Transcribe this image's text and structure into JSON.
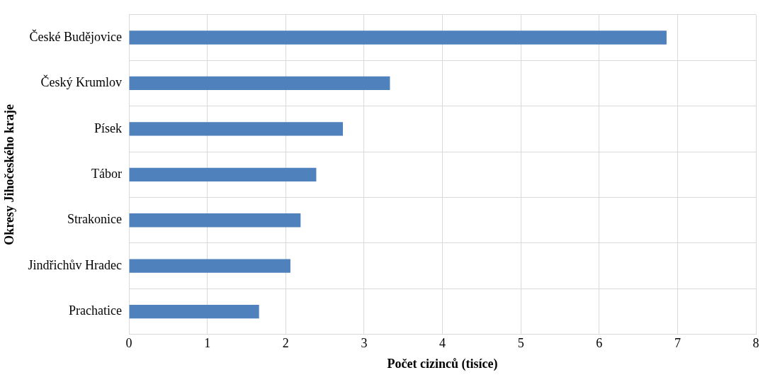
{
  "chart_data": {
    "type": "bar",
    "orientation": "horizontal",
    "xlabel": "Počet cizinců (tisíce)",
    "ylabel": "Okresy Jihočeského kraje",
    "categories": [
      "České Budějovice",
      "Český Krumlov",
      "Písek",
      "Tábor",
      "Strakonice",
      "Jindřichův Hradec",
      "Prachatice"
    ],
    "values": [
      6.86,
      3.33,
      2.73,
      2.39,
      2.19,
      2.06,
      1.66
    ],
    "color": "#4f81bd",
    "xlim": [
      0,
      8
    ],
    "xticks": [
      0,
      1,
      2,
      3,
      4,
      5,
      6,
      7,
      8
    ],
    "grid": true,
    "legend": false
  }
}
